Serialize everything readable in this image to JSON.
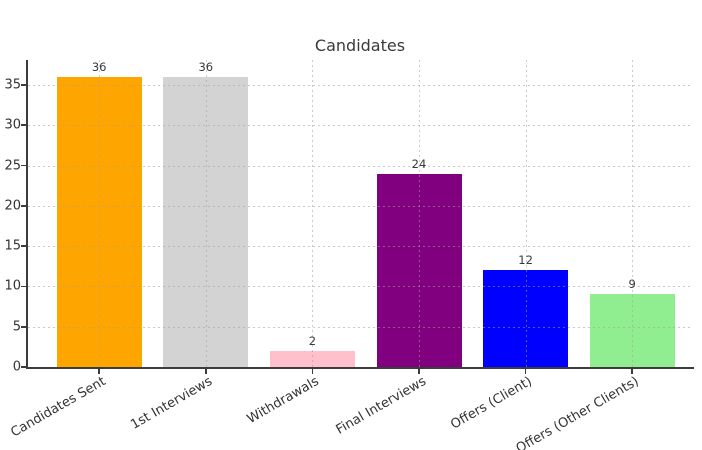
{
  "chart_data": {
    "type": "bar",
    "title": "Candidates",
    "categories": [
      "Candidates Sent",
      "1st Interviews",
      "Withdrawals",
      "Final Interviews",
      "Offers (Client)",
      "Offers (Other Clients)"
    ],
    "values": [
      36,
      36,
      2,
      24,
      12,
      9
    ],
    "bar_colors": [
      "#FFA500",
      "#D3D3D3",
      "#FFC0CB",
      "#800080",
      "#0000FF",
      "#90EE90"
    ],
    "yticks": [
      0,
      5,
      10,
      15,
      20,
      25,
      30,
      35
    ],
    "ylim": [
      0,
      38.1
    ],
    "xlabel": "",
    "ylabel": "",
    "legend": "none",
    "grid": "dotted, horizontal and vertical, drawn over bars",
    "grid_color": "#c8c8c8",
    "text_color": "#3a3a3a",
    "spine_color": "#3c3c3c",
    "background_color": "#ffffff",
    "xtick_rotation_deg": 30
  }
}
